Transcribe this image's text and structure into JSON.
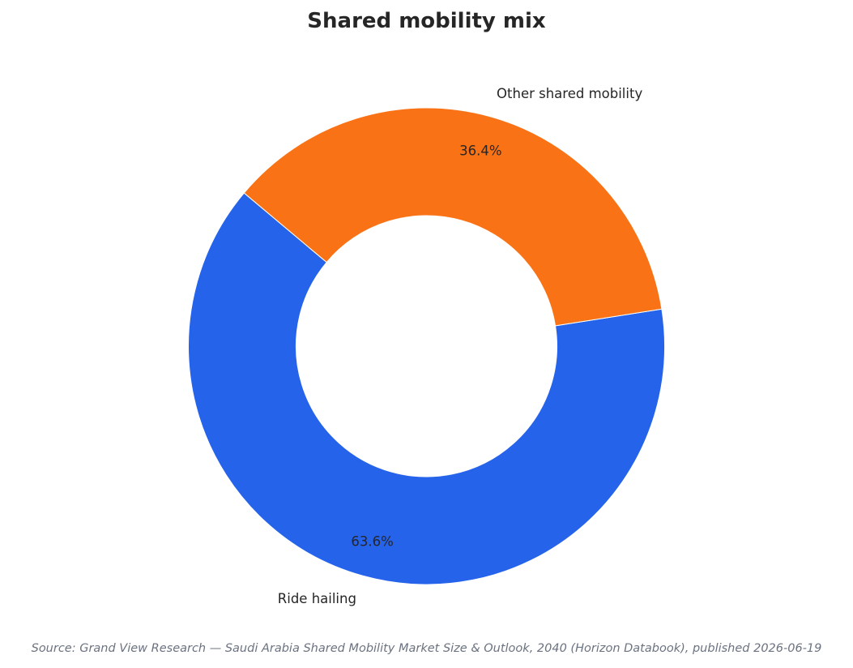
{
  "chart_data": {
    "type": "pie",
    "title": "Shared mobility mix",
    "categories": [
      "Ride hailing",
      "Other shared mobility"
    ],
    "values": [
      63.6,
      36.4
    ],
    "value_labels": [
      "63.6%",
      "36.4%"
    ],
    "colors": [
      "#2563eb",
      "#f97316"
    ],
    "donut": true,
    "legend": "none"
  },
  "source": "Source: Grand View Research — Saudi Arabia Shared Mobility Market Size & Outlook, 2040 (Horizon Databook), published 2026-06-19"
}
